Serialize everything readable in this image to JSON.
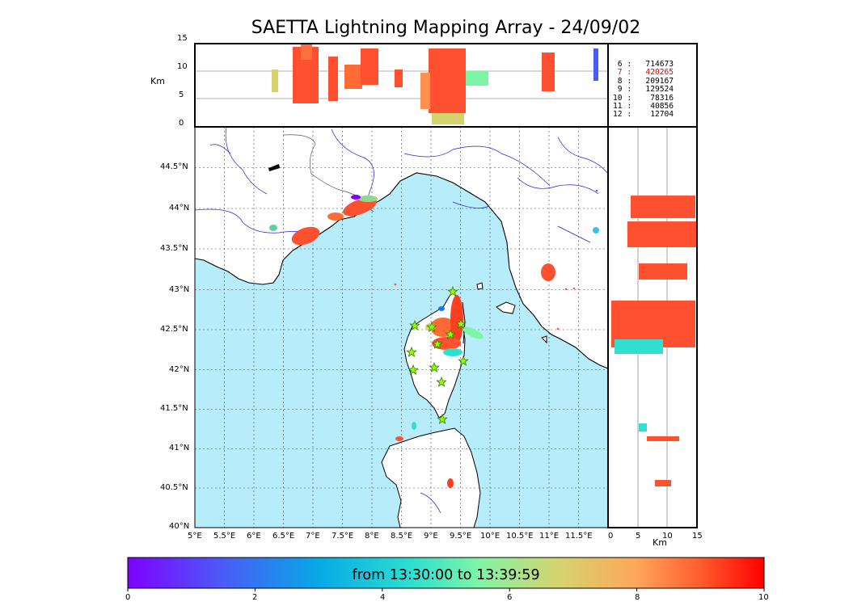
{
  "title": "SAETTA Lightning Mapping Array - 24/09/02",
  "altitude_unit": "Km",
  "alt_ticks": [
    "15",
    "10",
    "5",
    "0"
  ],
  "lat_ticks": [
    "44.5°N",
    "44°N",
    "43.5°N",
    "43°N",
    "42.5°N",
    "42°N",
    "41.5°N",
    "41°N",
    "40.5°N",
    "40°N"
  ],
  "lon_ticks": [
    "5°E",
    "5.5°E",
    "6°E",
    "6.5°E",
    "7°E",
    "7.5°E",
    "8°E",
    "8.5°E",
    "9°E",
    "9.5°E",
    "10°E",
    "10.5°E",
    "11°E",
    "11.5°E"
  ],
  "side_ticks": [
    "0",
    "5",
    "10",
    "15"
  ],
  "side_xlabel": "Km",
  "station_counts": [
    {
      "label": " 6 :   714673",
      "highlight": false
    },
    {
      "label": " 7 :   420265",
      "highlight": true
    },
    {
      "label": " 8 :   209167",
      "highlight": false
    },
    {
      "label": " 9 :   129524",
      "highlight": false
    },
    {
      "label": "10 :    78316",
      "highlight": false
    },
    {
      "label": "11 :    40856",
      "highlight": false
    },
    {
      "label": "12 :    12704",
      "highlight": false
    }
  ],
  "colorbar": {
    "text": "from 13:30:00 to 13:39:59",
    "ticks": [
      "0",
      "2",
      "4",
      "6",
      "8",
      "10"
    ]
  },
  "colors": {
    "sea": "#b7ecfa",
    "land": "#ffffff",
    "coast": "#000000",
    "rivers": "#2020e0",
    "strike_main": "#ff5030",
    "highlight_text": "#e00000",
    "station_star": "#8cff00"
  },
  "icons": [
    "station-star-icon"
  ]
}
